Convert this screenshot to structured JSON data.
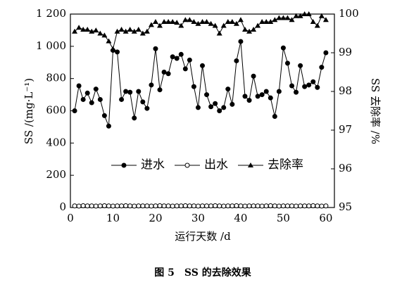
{
  "chart_data": {
    "type": "line",
    "caption": "图 5　SS 的去除效果",
    "xlabel": "运行天数 /d",
    "ylabel": "SS /(mg·L⁻¹)",
    "y2label": "SS 去除率 /%",
    "x": [
      1,
      2,
      3,
      4,
      5,
      6,
      7,
      8,
      9,
      10,
      11,
      12,
      13,
      14,
      15,
      16,
      17,
      18,
      19,
      20,
      21,
      22,
      23,
      24,
      25,
      26,
      27,
      28,
      29,
      30,
      31,
      32,
      33,
      34,
      35,
      36,
      37,
      38,
      39,
      40,
      41,
      42,
      43,
      44,
      45,
      46,
      47,
      48,
      49,
      50,
      51,
      52,
      53,
      54,
      55,
      56,
      57,
      58,
      59,
      60
    ],
    "series": [
      {
        "name": "进水",
        "color": "#000000",
        "marker": "filled-circle",
        "values": [
          600,
          755,
          670,
          710,
          650,
          735,
          670,
          570,
          505,
          975,
          965,
          670,
          720,
          715,
          555,
          720,
          655,
          615,
          760,
          985,
          730,
          840,
          830,
          935,
          925,
          950,
          860,
          915,
          750,
          620,
          880,
          700,
          625,
          645,
          600,
          620,
          735,
          640,
          910,
          1030,
          690,
          665,
          815,
          690,
          700,
          720,
          680,
          565,
          720,
          990,
          895,
          755,
          715,
          880,
          750,
          760,
          780,
          745,
          870,
          960
        ]
      },
      {
        "name": "出水",
        "color": "#000000",
        "marker": "open-circle",
        "values": [
          10,
          9,
          11,
          10,
          10,
          9,
          10,
          11,
          10,
          9,
          10,
          10,
          11,
          10,
          9,
          10,
          10,
          10,
          9,
          10,
          11,
          10,
          10,
          9,
          10,
          10,
          11,
          10,
          10,
          9,
          10,
          10,
          10,
          11,
          10,
          9,
          10,
          10,
          11,
          10,
          9,
          10,
          10,
          10,
          9,
          10,
          11,
          10,
          9,
          10,
          10,
          10,
          9,
          10,
          10,
          10,
          11,
          10,
          9,
          10
        ]
      },
      {
        "name": "去除率",
        "color": "#000000",
        "marker": "filled-triangle",
        "axis": "y2",
        "values": [
          99.55,
          99.65,
          99.6,
          99.6,
          99.55,
          99.58,
          99.5,
          99.45,
          99.3,
          99.1,
          99.55,
          99.6,
          99.55,
          99.6,
          99.55,
          99.6,
          99.5,
          99.55,
          99.72,
          99.8,
          99.7,
          99.8,
          99.8,
          99.8,
          99.78,
          99.7,
          99.85,
          99.85,
          99.8,
          99.75,
          99.8,
          99.8,
          99.75,
          99.7,
          99.5,
          99.7,
          99.8,
          99.8,
          99.75,
          99.85,
          99.6,
          99.55,
          99.6,
          99.7,
          99.8,
          99.8,
          99.8,
          99.85,
          99.9,
          99.9,
          99.9,
          99.85,
          99.95,
          99.95,
          100,
          100,
          99.8,
          99.7,
          99.95,
          99.85
        ]
      }
    ],
    "xlim": [
      0,
      62
    ],
    "xticks": [
      0,
      10,
      20,
      30,
      40,
      50,
      60
    ],
    "ylim": [
      0,
      1200
    ],
    "yticks": [
      0,
      200,
      400,
      600,
      800,
      {
        "value": 1000,
        "label": "1 000"
      },
      {
        "value": 1200,
        "label": "1 200"
      }
    ],
    "y2lim": [
      95,
      100
    ],
    "y2ticks": [
      95,
      96,
      97,
      98,
      99,
      100
    ]
  }
}
